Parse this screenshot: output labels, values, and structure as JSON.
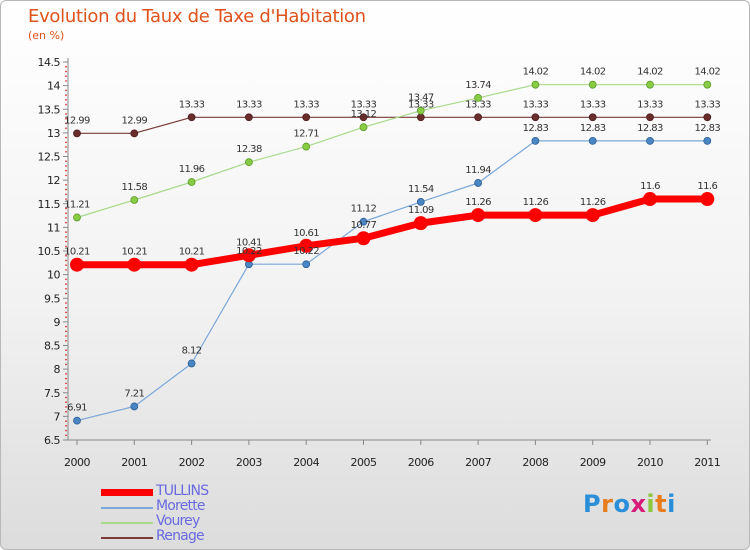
{
  "title": "Evolution du Taux de Taxe d'Habitation",
  "unit": "(en %)",
  "logo": "Proxiti",
  "chart_data": {
    "type": "line",
    "title": "Evolution du Taux de Taxe d'Habitation",
    "ylabel": "(en %)",
    "xlabel": "",
    "x": [
      "2000",
      "2001",
      "2002",
      "2003",
      "2004",
      "2005",
      "2006",
      "2007",
      "2008",
      "2009",
      "2010",
      "2011"
    ],
    "ylim": [
      6.5,
      14.5
    ],
    "yticks": [
      "6.5",
      "7",
      "7.5",
      "8",
      "8.5",
      "9",
      "9.5",
      "10",
      "10.5",
      "11",
      "11.5",
      "12",
      "12.5",
      "13",
      "13.5",
      "14",
      "14.5"
    ],
    "grid": false,
    "legend_position": "bottom-left",
    "series": [
      {
        "name": "TULLINS",
        "color": "#ff0000",
        "values": [
          10.21,
          10.21,
          10.21,
          10.41,
          10.61,
          10.77,
          11.09,
          11.26,
          11.26,
          11.26,
          11.6,
          11.6
        ],
        "labels": [
          "10.21",
          "10.21",
          "10.21",
          "10.41",
          "10.61",
          "10.77",
          "11.09",
          "11.26",
          "11.26",
          "11.26",
          "11.6",
          "11.6"
        ]
      },
      {
        "name": "Morette",
        "color": "#6699cc",
        "values": [
          6.91,
          7.21,
          8.12,
          10.22,
          10.22,
          11.12,
          11.54,
          11.94,
          12.83,
          12.83,
          12.83,
          12.83
        ],
        "labels": [
          "6.91",
          "7.21",
          "8.12",
          "10.22",
          "10.22",
          "11.12",
          "11.54",
          "11.94",
          "12.83",
          "12.83",
          "12.83",
          "12.83"
        ]
      },
      {
        "name": "Vourey",
        "color": "#99cc66",
        "values": [
          11.21,
          11.58,
          11.96,
          12.38,
          12.71,
          13.12,
          13.47,
          13.74,
          14.02,
          14.02,
          14.02,
          14.02
        ],
        "labels": [
          "11.21",
          "11.58",
          "11.96",
          "12.38",
          "12.71",
          "13.12",
          "13.47",
          "13.74",
          "14.02",
          "14.02",
          "14.02",
          "14.02"
        ]
      },
      {
        "name": "Renage",
        "color": "#7a3b3b",
        "values": [
          12.99,
          12.99,
          13.33,
          13.33,
          13.33,
          13.33,
          13.33,
          13.33,
          13.33,
          13.33,
          13.33,
          13.33
        ],
        "labels": [
          "12.99",
          "12.99",
          "13.33",
          "13.33",
          "13.33",
          "13.33",
          "13.33",
          "13.33",
          "13.33",
          "13.33",
          "13.33",
          "13.33"
        ]
      }
    ]
  }
}
